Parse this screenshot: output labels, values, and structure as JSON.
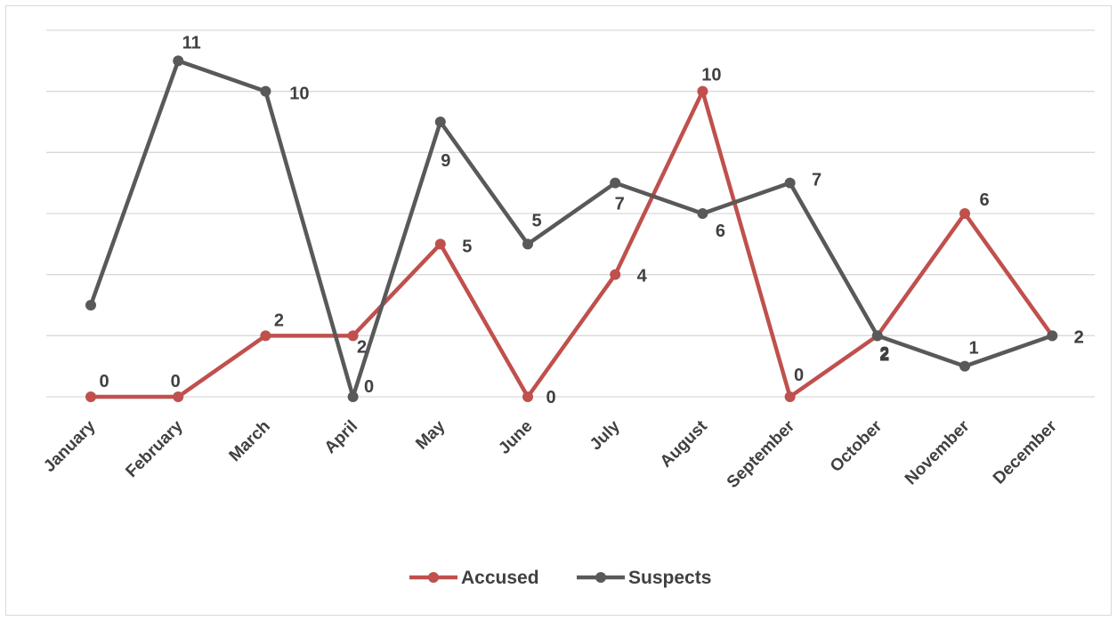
{
  "chart_data": {
    "type": "line",
    "title": "",
    "xlabel": "",
    "ylabel": "",
    "categories": [
      "January",
      "February",
      "March",
      "April",
      "May",
      "June",
      "July",
      "August",
      "September",
      "October",
      "November",
      "December"
    ],
    "ylim": [
      0,
      12
    ],
    "y_gridlines": [
      0,
      2,
      4,
      6,
      8,
      10,
      12
    ],
    "grid": true,
    "legend_position": "bottom",
    "series": [
      {
        "name": "Accused",
        "color": "#c0504d",
        "values": [
          0,
          0,
          2,
          2,
          5,
          0,
          4,
          10,
          0,
          2,
          6,
          2
        ],
        "labels": [
          "0",
          "0",
          "2",
          "2",
          "5",
          "0",
          "4",
          "10",
          "0",
          "2",
          "6",
          "2"
        ]
      },
      {
        "name": "Suspects",
        "color": "#595959",
        "values": [
          3,
          11,
          10,
          0,
          9,
          5,
          7,
          6,
          7,
          2,
          1,
          2
        ],
        "labels": [
          null,
          "11",
          "10",
          "0",
          "9",
          "5",
          "7",
          "6",
          "7",
          "2",
          "1",
          "2"
        ]
      }
    ]
  }
}
